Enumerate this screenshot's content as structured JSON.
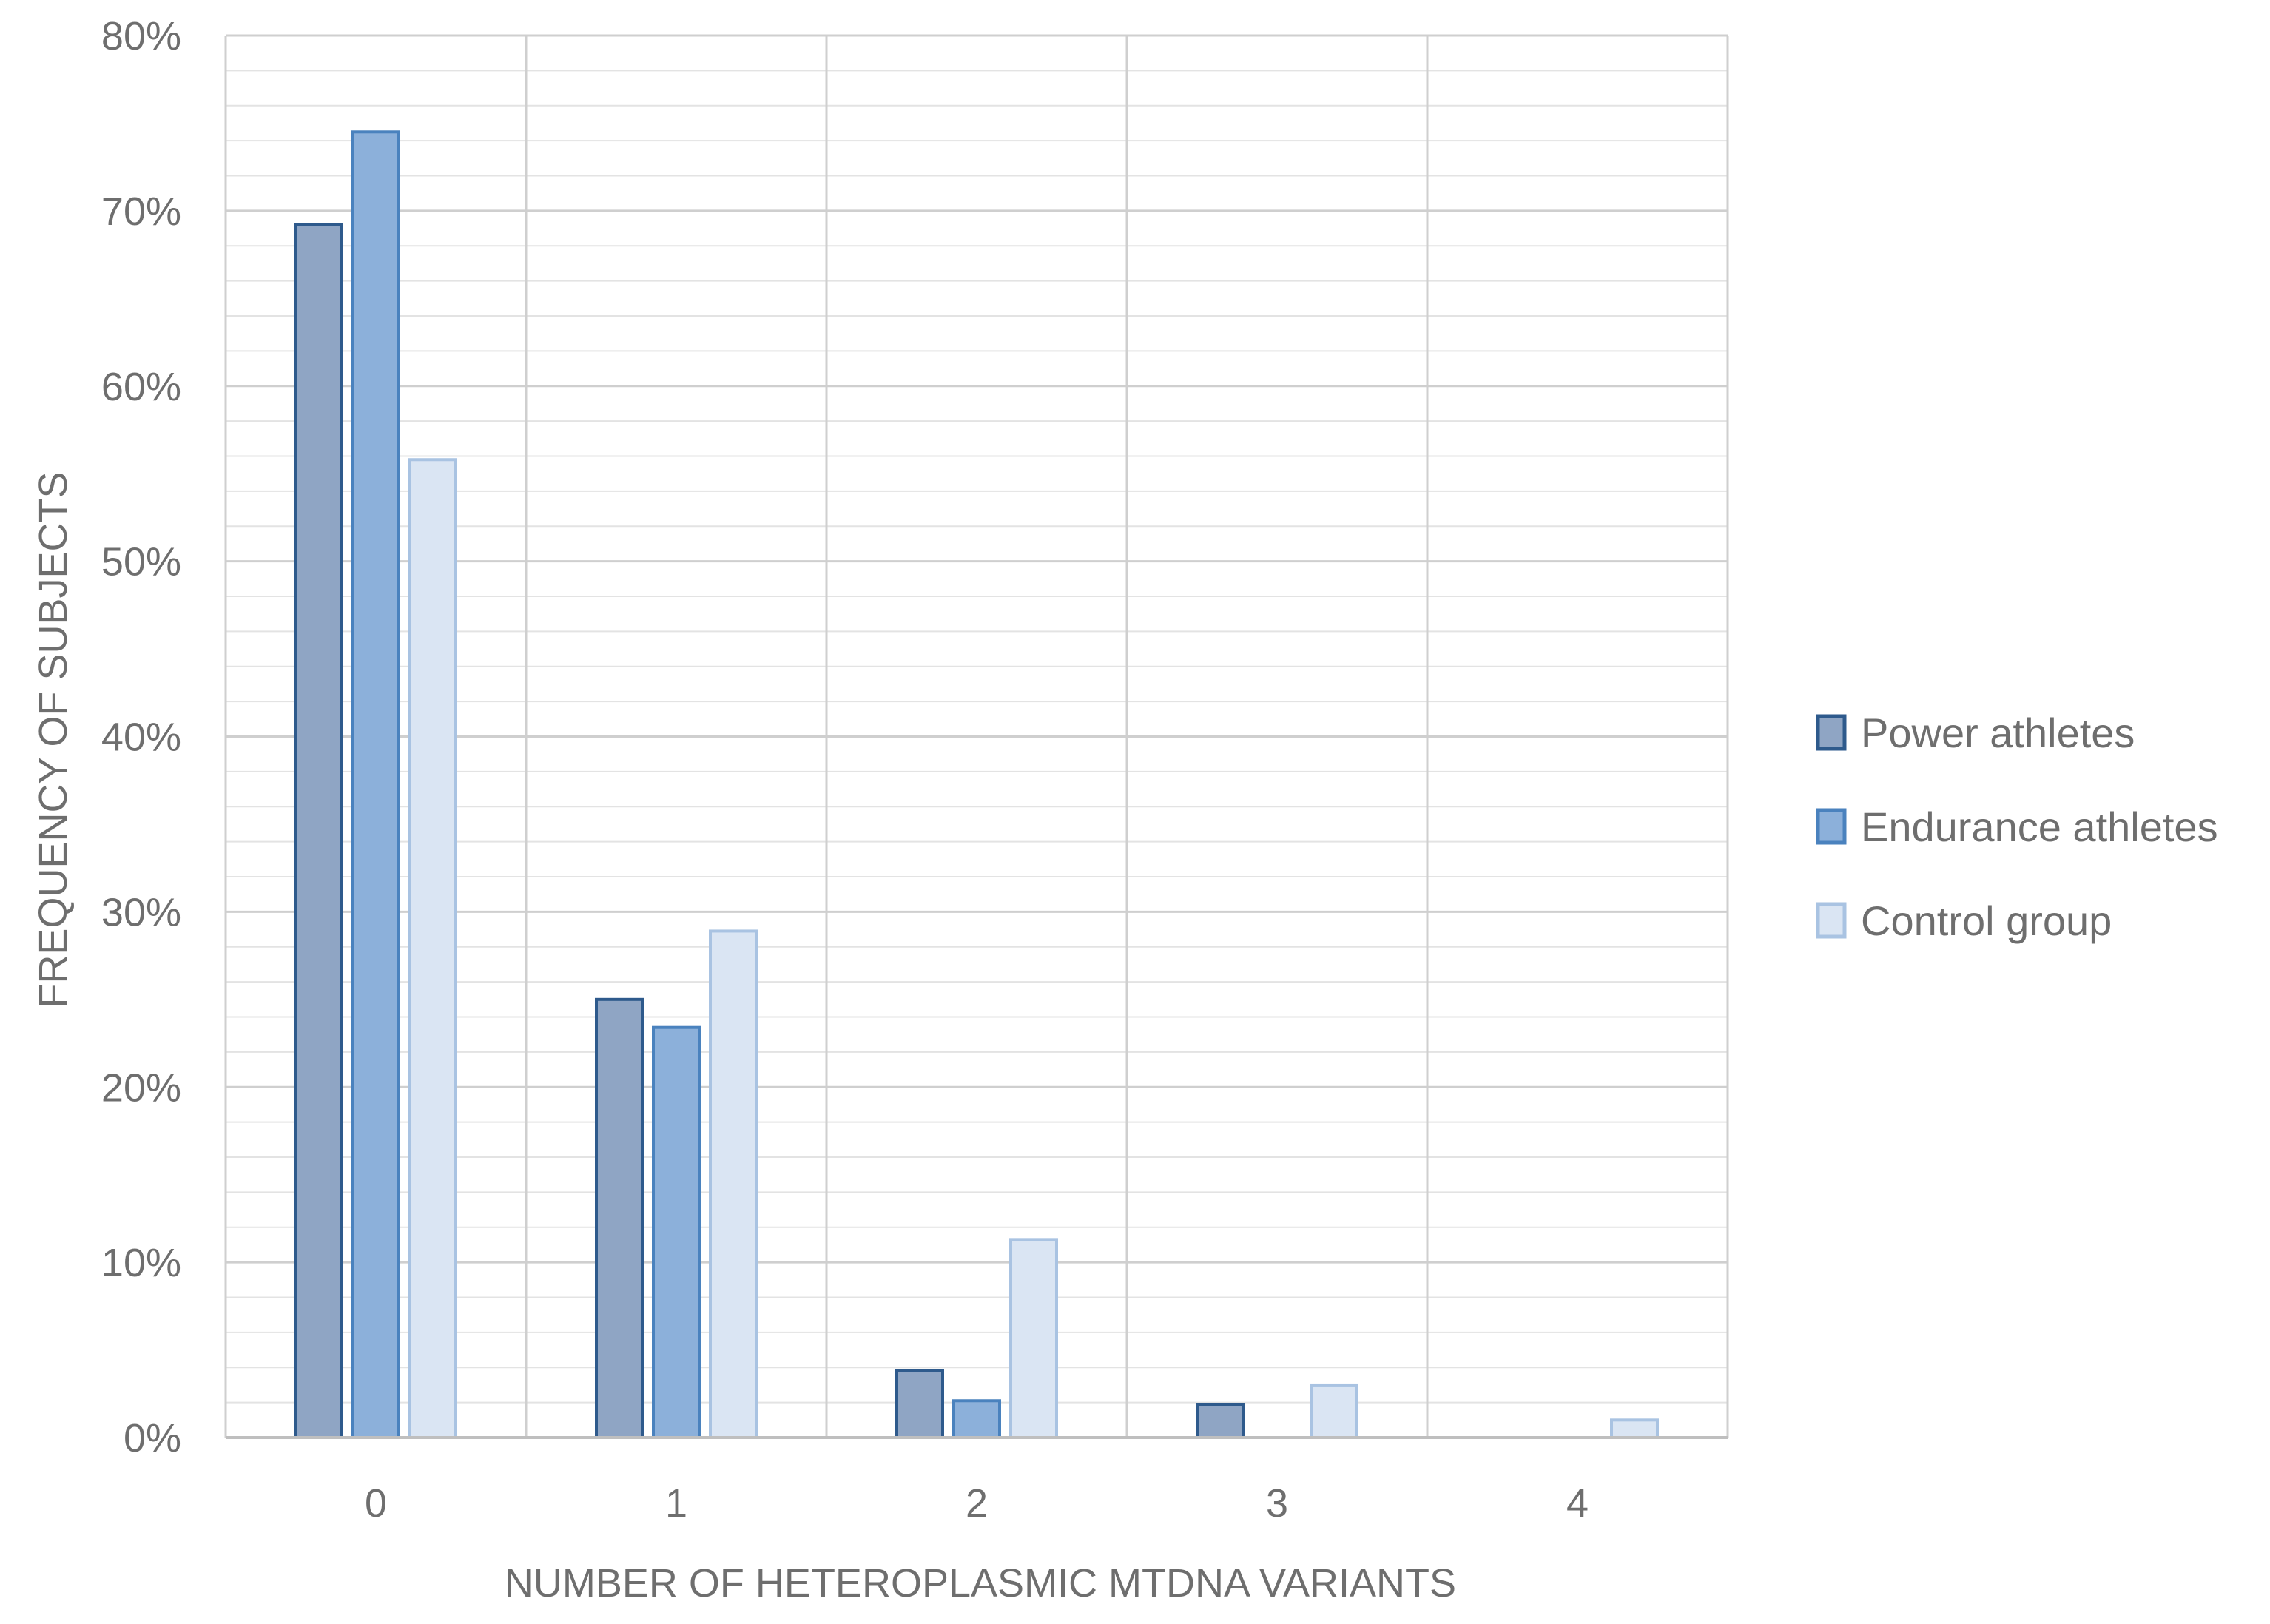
{
  "chart_data": {
    "type": "bar",
    "xlabel": "NUMBER OF HETEROPLASMIC MTDNA VARIANTS",
    "ylabel": "FREQUENCY OF SUBJECTS",
    "categories": [
      "0",
      "1",
      "2",
      "3",
      "4"
    ],
    "ylim": [
      0,
      80
    ],
    "yticks": [
      "0%",
      "10%",
      "20%",
      "30%",
      "40%",
      "50%",
      "60%",
      "70%",
      "80%"
    ],
    "grid": true,
    "legend_position": "right",
    "series": [
      {
        "name": "Power athletes",
        "values": [
          69.2,
          25.0,
          3.8,
          1.9,
          0
        ],
        "fill": "#8fa5c4",
        "stroke": "#2e5a8c"
      },
      {
        "name": "Endurance athletes",
        "values": [
          74.5,
          23.4,
          2.1,
          0,
          0
        ],
        "fill": "#8cb0da",
        "stroke": "#4a82be"
      },
      {
        "name": "Control group",
        "values": [
          55.8,
          28.9,
          11.3,
          3.0,
          1.0
        ],
        "fill": "#dae5f3",
        "stroke": "#a9c3e2"
      }
    ]
  }
}
